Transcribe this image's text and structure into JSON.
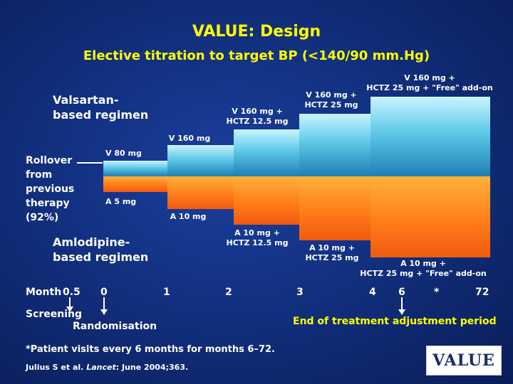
{
  "slide": {
    "title": "VALUE: Design",
    "subtitle": "Elective titration to target BP (<140/90 mm.Hg)"
  },
  "regimens": {
    "valsartan": "Valsartan-\nbased regimen",
    "amlodipine": "Amlodipine-\nbased regimen"
  },
  "rollover": "Rollover\nfrom\nprevious\ntherapy\n(92%)",
  "valsartan_steps": [
    {
      "label": "V 80 mg"
    },
    {
      "label": "V 160 mg"
    },
    {
      "label": "V 160 mg +\nHCTZ 12.5 mg"
    },
    {
      "label": "V 160 mg +\nHCTZ 25 mg"
    },
    {
      "label": "V 160 mg +\nHCTZ 25 mg + \"Free\" add-on"
    }
  ],
  "amlodipine_steps": [
    {
      "label": "A 5 mg"
    },
    {
      "label": "A 10 mg"
    },
    {
      "label": "A 10 mg +\nHCTZ 12.5 mg"
    },
    {
      "label": "A 10 mg +\nHCTZ 25 mg"
    },
    {
      "label": "A 10 mg +\nHCTZ 25 mg + \"Free\" add-on"
    }
  ],
  "timeline": {
    "month_label": "Month",
    "ticks": [
      "0.5",
      "0",
      "1",
      "2",
      "3",
      "4",
      "6",
      "*",
      "72"
    ]
  },
  "annotations": {
    "screening": "Screening",
    "randomisation": "Randomisation",
    "end_period": "End of treatment adjustment period"
  },
  "footnote": "*Patient visits every 6 months for months 6–72.",
  "reference": {
    "authors": "Julius S et al.",
    "journal": "Lancet",
    "rest": ": June 2004;363."
  },
  "logo": {
    "text": "VALUE"
  },
  "colors": {
    "valsartan_bar": "#5ec9e8",
    "amlodipine_bar": "#ff7d1a",
    "accent_title": "#ffff00"
  }
}
